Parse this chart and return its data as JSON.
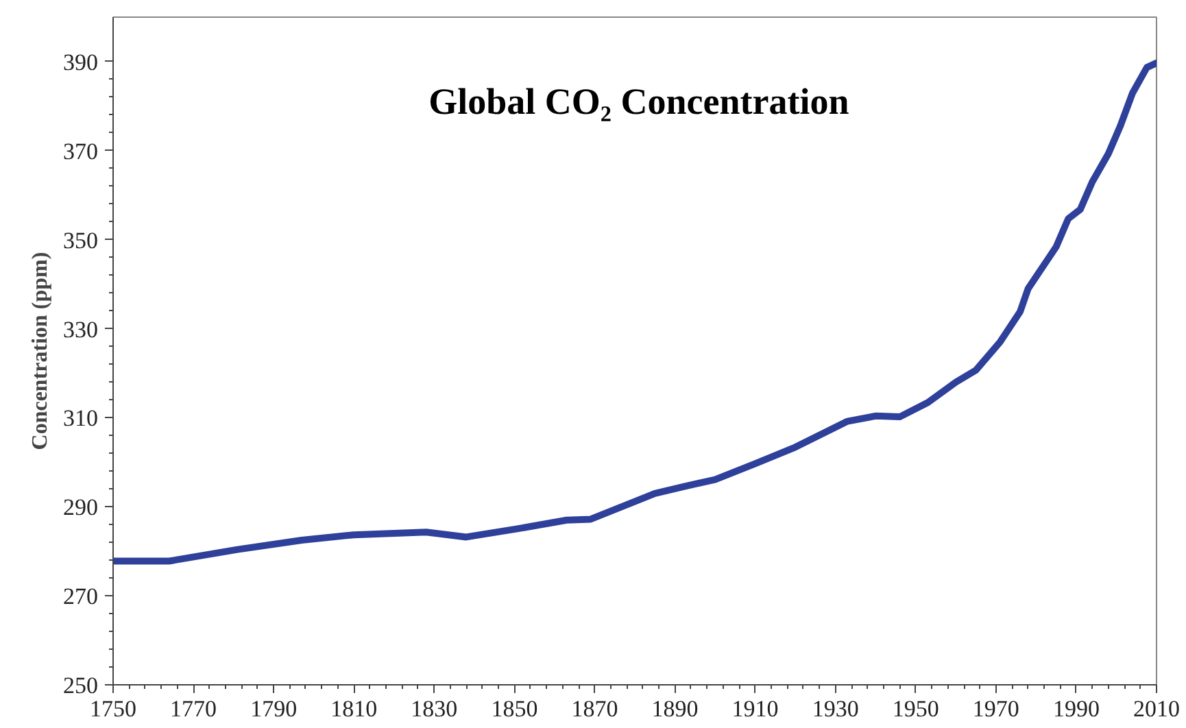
{
  "chart_data": {
    "type": "line",
    "title": "Global CO₂ Concentration",
    "ylabel": "Concentration (ppm)",
    "x": [
      1750,
      1764,
      1781,
      1797,
      1810,
      1828,
      1838,
      1851,
      1863,
      1869,
      1885,
      1892,
      1900,
      1910,
      1920,
      1933,
      1940,
      1946,
      1953,
      1960,
      1965,
      1971,
      1976,
      1978,
      1985,
      1988,
      1991,
      1994,
      1998,
      2001,
      2004,
      2007.6,
      2010
    ],
    "series": [
      {
        "color": "#2e409a",
        "values": [
          277.8,
          277.8,
          280.4,
          282.5,
          283.7,
          284.3,
          283.2,
          285.1,
          287,
          287.2,
          293,
          294.5,
          296.1,
          299.7,
          303.4,
          309.2,
          310.4,
          310.2,
          313.4,
          318,
          320.7,
          327,
          333.8,
          339,
          348.4,
          354.7,
          356.8,
          363,
          369.3,
          375.6,
          382.9,
          388.7,
          389.7
        ]
      }
    ],
    "xlim": [
      1750,
      2010
    ],
    "xticks": [
      1750,
      1770,
      1790,
      1810,
      1830,
      1850,
      1870,
      1890,
      1910,
      1930,
      1950,
      1970,
      1990,
      2010
    ],
    "ylim": [
      250,
      400
    ],
    "yticks": [
      250,
      270,
      290,
      310,
      330,
      350,
      370,
      390
    ],
    "grid": false,
    "marker": "none",
    "line_style": "solid"
  }
}
